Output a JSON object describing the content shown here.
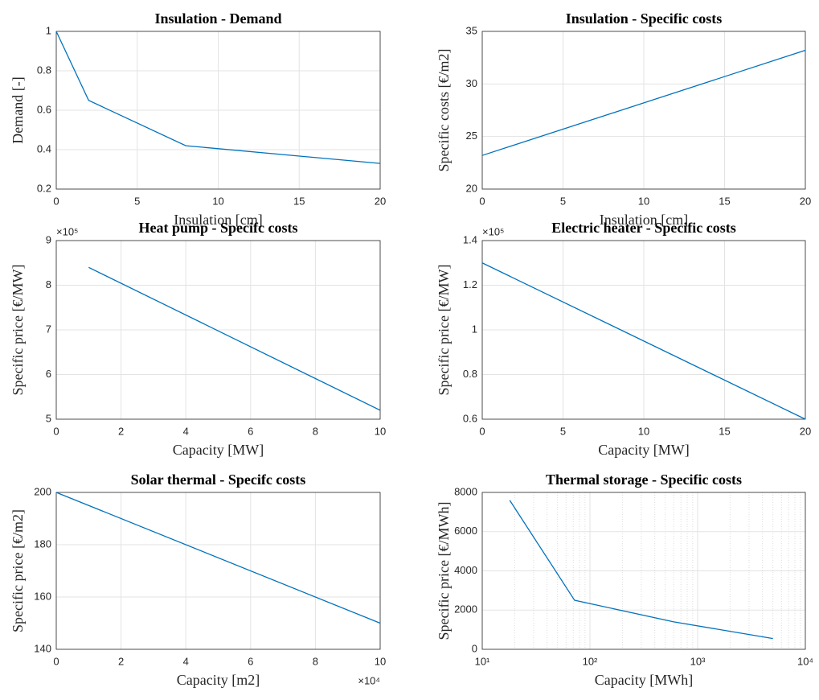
{
  "chart_data": [
    {
      "type": "line",
      "title": "Insulation - Demand",
      "x_label": "Insulation [cm]",
      "y_label": "Demand [-]",
      "x": [
        0,
        2,
        8,
        20
      ],
      "series": [
        {
          "color": "#0072bd",
          "values": [
            1,
            0.65,
            0.42,
            0.33
          ]
        }
      ],
      "xlim": [
        0,
        20
      ],
      "xticks": [
        0,
        5,
        10,
        15,
        20
      ],
      "ylim": [
        0.2,
        1
      ],
      "yticks": [
        0.2,
        0.4,
        0.6,
        0.8,
        1
      ],
      "grid": true
    },
    {
      "type": "line",
      "title": "Insulation - Specific costs",
      "x_label": "Insulation [cm]",
      "y_label": "Specific costs [€/m2]",
      "x": [
        0,
        20
      ],
      "series": [
        {
          "color": "#0072bd",
          "values": [
            23.2,
            33.2
          ]
        }
      ],
      "xlim": [
        0,
        20
      ],
      "xticks": [
        0,
        5,
        10,
        15,
        20
      ],
      "ylim": [
        20,
        35
      ],
      "yticks": [
        20,
        25,
        30,
        35
      ],
      "grid": true
    },
    {
      "type": "line",
      "title": "Heat pump - Specifc costs",
      "x_label": "Capacity [MW]",
      "y_label": "Specific price [€/MW]",
      "y_exponent": "×10⁵",
      "x": [
        1,
        10
      ],
      "series": [
        {
          "color": "#0072bd",
          "values": [
            840000,
            520000
          ]
        }
      ],
      "xlim": [
        0,
        10
      ],
      "xticks": [
        0,
        2,
        4,
        6,
        8,
        10
      ],
      "ylim": [
        500000,
        900000
      ],
      "yticks": [
        {
          "value": 500000,
          "label": "5"
        },
        {
          "value": 600000,
          "label": "6"
        },
        {
          "value": 700000,
          "label": "7"
        },
        {
          "value": 800000,
          "label": "8"
        },
        {
          "value": 900000,
          "label": "9"
        }
      ],
      "grid": true
    },
    {
      "type": "line",
      "title": "Electric heater - Specific costs",
      "x_label": "Capacity [MW]",
      "y_label": "Specific price [€/MW]",
      "y_exponent": "×10⁵",
      "x": [
        0,
        20
      ],
      "series": [
        {
          "color": "#0072bd",
          "values": [
            130000,
            60000
          ]
        }
      ],
      "xlim": [
        0,
        20
      ],
      "xticks": [
        0,
        5,
        10,
        15,
        20
      ],
      "ylim": [
        60000,
        140000
      ],
      "yticks": [
        {
          "value": 60000,
          "label": "0.6"
        },
        {
          "value": 80000,
          "label": "0.8"
        },
        {
          "value": 100000,
          "label": "1"
        },
        {
          "value": 120000,
          "label": "1.2"
        },
        {
          "value": 140000,
          "label": "1.4"
        }
      ],
      "grid": true
    },
    {
      "type": "line",
      "title": "Solar thermal - Specifc costs",
      "x_label": "Capacity [m2]",
      "y_label": "Specific price [€/m2]",
      "x_exponent": "×10⁴",
      "x": [
        0,
        100000
      ],
      "series": [
        {
          "color": "#0072bd",
          "values": [
            200,
            150
          ]
        }
      ],
      "xlim": [
        0,
        100000
      ],
      "xticks": [
        {
          "value": 0,
          "label": "0"
        },
        {
          "value": 20000,
          "label": "2"
        },
        {
          "value": 40000,
          "label": "4"
        },
        {
          "value": 60000,
          "label": "6"
        },
        {
          "value": 80000,
          "label": "8"
        },
        {
          "value": 100000,
          "label": "10"
        }
      ],
      "ylim": [
        140,
        200
      ],
      "yticks": [
        140,
        160,
        180,
        200
      ],
      "grid": true
    },
    {
      "type": "line",
      "title": "Thermal storage - Specific costs",
      "x_label": "Capacity [MWh]",
      "y_label": "Specific price [€/MWh]",
      "xscale": "log",
      "x": [
        18,
        72,
        600,
        5000
      ],
      "series": [
        {
          "color": "#0072bd",
          "values": [
            7600,
            2500,
            1400,
            550
          ]
        }
      ],
      "xlim": [
        10,
        10000
      ],
      "xticks": [
        {
          "value": 10,
          "label": "10¹"
        },
        {
          "value": 100,
          "label": "10²"
        },
        {
          "value": 1000,
          "label": "10³"
        },
        {
          "value": 10000,
          "label": "10⁴"
        }
      ],
      "xminorticks": [
        20,
        30,
        40,
        50,
        60,
        70,
        80,
        90,
        200,
        300,
        400,
        500,
        600,
        700,
        800,
        900,
        2000,
        3000,
        4000,
        5000,
        6000,
        7000,
        8000,
        9000
      ],
      "ylim": [
        0,
        8000
      ],
      "yticks": [
        0,
        2000,
        4000,
        6000,
        8000
      ],
      "grid": true
    }
  ]
}
